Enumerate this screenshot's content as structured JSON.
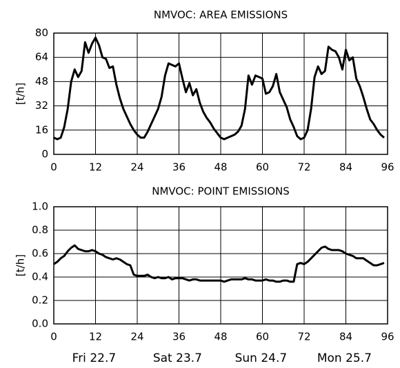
{
  "chart_data": [
    {
      "type": "line",
      "title": "NMVOC: AREA EMISSIONS",
      "y_label": "[t/h]",
      "grid": true,
      "xlim": [
        0,
        96
      ],
      "xticks": [
        0,
        12,
        24,
        36,
        48,
        60,
        72,
        84,
        96
      ],
      "ylim": [
        0,
        80
      ],
      "yticks": [
        0,
        16,
        32,
        48,
        64,
        80
      ],
      "x": [
        0,
        1,
        2,
        3,
        4,
        5,
        6,
        7,
        8,
        9,
        10,
        11,
        12,
        13,
        14,
        15,
        16,
        17,
        18,
        19,
        20,
        21,
        22,
        23,
        24,
        25,
        26,
        27,
        28,
        29,
        30,
        31,
        32,
        33,
        34,
        35,
        36,
        37,
        38,
        39,
        40,
        41,
        42,
        43,
        44,
        45,
        46,
        47,
        48,
        49,
        50,
        51,
        52,
        53,
        54,
        55,
        56,
        57,
        58,
        59,
        60,
        61,
        62,
        63,
        64,
        65,
        66,
        67,
        68,
        69,
        70,
        71,
        72,
        73,
        74,
        75,
        76,
        77,
        78,
        79,
        80,
        81,
        82,
        83,
        84,
        85,
        86,
        87,
        88,
        89,
        90,
        91,
        92,
        93,
        94,
        95
      ],
      "series": [
        {
          "color": "#000000",
          "values": [
            11,
            10,
            11,
            18,
            30,
            48,
            56,
            51,
            55,
            74,
            67,
            73,
            77,
            72,
            64,
            63,
            57,
            58,
            46,
            37,
            30,
            25,
            20,
            16,
            13,
            11,
            11,
            15,
            20,
            25,
            30,
            38,
            52,
            60,
            59,
            58,
            60,
            50,
            41,
            47,
            39,
            43,
            34,
            28,
            24,
            21,
            17,
            14,
            11,
            10,
            11,
            12,
            13,
            15,
            19,
            30,
            52,
            46,
            52,
            51,
            50,
            40,
            41,
            45,
            53,
            41,
            36,
            31,
            23,
            18,
            12,
            10,
            11,
            16,
            30,
            51,
            58,
            53,
            55,
            71,
            69,
            68,
            64,
            56,
            69,
            62,
            64,
            50,
            45,
            38,
            30,
            23,
            20,
            16,
            13,
            11
          ]
        }
      ]
    },
    {
      "type": "line",
      "title": "NMVOC: POINT EMISSIONS",
      "y_label": "[t/h]",
      "grid": true,
      "xlim": [
        0,
        96
      ],
      "xticks": [
        0,
        12,
        24,
        36,
        48,
        60,
        72,
        84,
        96
      ],
      "ylim": [
        0,
        1
      ],
      "yticks": [
        {
          "value": 0,
          "label": "0.0"
        },
        0.2,
        0.4,
        0.6,
        0.8,
        {
          "value": 1,
          "label": "1.0"
        }
      ],
      "x": [
        0,
        1,
        2,
        3,
        4,
        5,
        6,
        7,
        8,
        9,
        10,
        11,
        12,
        13,
        14,
        15,
        16,
        17,
        18,
        19,
        20,
        21,
        22,
        23,
        24,
        25,
        26,
        27,
        28,
        29,
        30,
        31,
        32,
        33,
        34,
        35,
        36,
        37,
        38,
        39,
        40,
        41,
        42,
        43,
        44,
        45,
        46,
        47,
        48,
        49,
        50,
        51,
        52,
        53,
        54,
        55,
        56,
        57,
        58,
        59,
        60,
        61,
        62,
        63,
        64,
        65,
        66,
        67,
        68,
        69,
        70,
        71,
        72,
        73,
        74,
        75,
        76,
        77,
        78,
        79,
        80,
        81,
        82,
        83,
        84,
        85,
        86,
        87,
        88,
        89,
        90,
        91,
        92,
        93,
        94,
        95
      ],
      "series": [
        {
          "color": "#000000",
          "values": [
            0.51,
            0.53,
            0.56,
            0.58,
            0.62,
            0.65,
            0.67,
            0.64,
            0.63,
            0.62,
            0.62,
            0.63,
            0.62,
            0.6,
            0.59,
            0.57,
            0.56,
            0.55,
            0.56,
            0.55,
            0.53,
            0.51,
            0.5,
            0.42,
            0.41,
            0.41,
            0.41,
            0.42,
            0.4,
            0.39,
            0.4,
            0.39,
            0.39,
            0.4,
            0.38,
            0.39,
            0.39,
            0.39,
            0.38,
            0.37,
            0.38,
            0.38,
            0.37,
            0.37,
            0.37,
            0.37,
            0.37,
            0.37,
            0.37,
            0.36,
            0.37,
            0.38,
            0.38,
            0.38,
            0.38,
            0.39,
            0.38,
            0.38,
            0.37,
            0.37,
            0.37,
            0.38,
            0.37,
            0.37,
            0.36,
            0.36,
            0.37,
            0.37,
            0.36,
            0.36,
            0.51,
            0.52,
            0.51,
            0.53,
            0.56,
            0.59,
            0.62,
            0.65,
            0.66,
            0.64,
            0.63,
            0.63,
            0.63,
            0.62,
            0.6,
            0.59,
            0.58,
            0.56,
            0.56,
            0.56,
            0.54,
            0.52,
            0.5,
            0.5,
            0.51,
            0.52
          ]
        }
      ],
      "day_labels": [
        "Fri 22.7",
        "Sat 23.7",
        "Sun 24.7",
        "Mon 25.7"
      ]
    }
  ]
}
